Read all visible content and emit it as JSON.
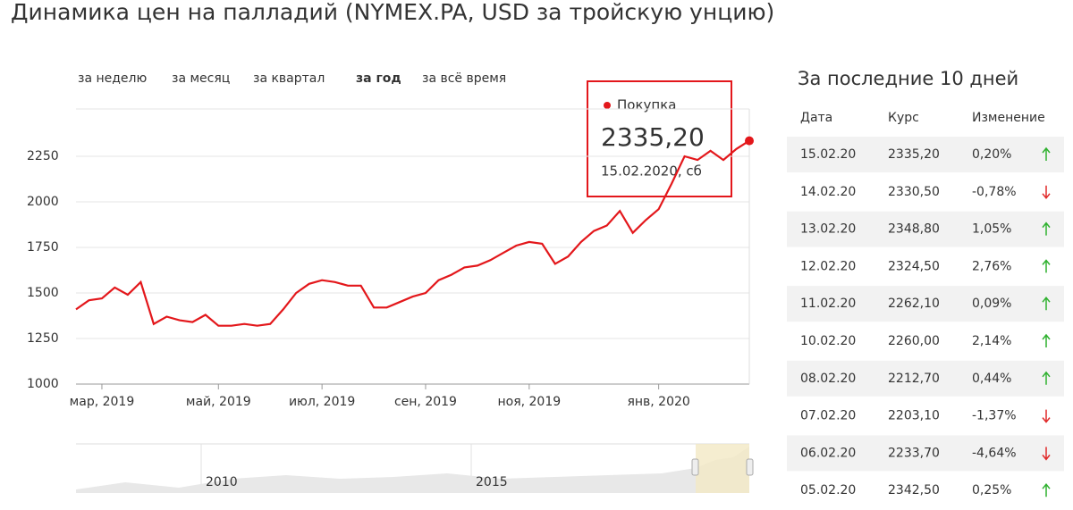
{
  "title": "Динамика цен на палладий (NYMEX.PA, USD за тройскую унцию)",
  "tabs": {
    "items": [
      "за неделю",
      "за месяц",
      "за квартал",
      "за год",
      "за всё время"
    ],
    "active": 3
  },
  "chart_data": {
    "type": "line",
    "color": "#e3171b",
    "categories": [
      null,
      null,
      "мар, 2019",
      null,
      null,
      null,
      null,
      null,
      null,
      null,
      null,
      "май, 2019",
      null,
      null,
      null,
      null,
      null,
      null,
      null,
      "июл, 2019",
      null,
      null,
      null,
      null,
      null,
      null,
      null,
      "сен, 2019",
      null,
      null,
      null,
      null,
      null,
      null,
      null,
      "ноя, 2019",
      null,
      null,
      null,
      null,
      null,
      null,
      null,
      null,
      null,
      "янв, 2020",
      null,
      null,
      null,
      null,
      null,
      null,
      null
    ],
    "values": [
      1410,
      1460,
      1470,
      1530,
      1490,
      1560,
      1330,
      1370,
      1350,
      1340,
      1380,
      1320,
      1320,
      1330,
      1320,
      1330,
      1410,
      1500,
      1550,
      1570,
      1560,
      1540,
      1540,
      1420,
      1420,
      1450,
      1480,
      1500,
      1570,
      1600,
      1640,
      1650,
      1680,
      1720,
      1760,
      1780,
      1770,
      1660,
      1700,
      1780,
      1840,
      1870,
      1950,
      1830,
      1900,
      1960,
      2100,
      2250,
      2230,
      2280,
      2230,
      2290,
      2335.2
    ],
    "ylim": [
      1000,
      2500
    ],
    "yticks": [
      1000,
      1250,
      1500,
      1750,
      2000,
      2250
    ],
    "grid": true
  },
  "tooltip": {
    "label": "Покупка",
    "value": "2335,20",
    "date": "15.02.2020, сб"
  },
  "navigator": {
    "labels": [
      "2010",
      "2015"
    ]
  },
  "table": {
    "title": "За последние 10 дней",
    "headers": [
      "Дата",
      "Курс",
      "Изменение"
    ],
    "rows": [
      [
        "15.02.20",
        "2335,20",
        "0,20%"
      ],
      [
        "14.02.20",
        "2330,50",
        "-0,78%"
      ],
      [
        "13.02.20",
        "2348,80",
        "1,05%"
      ],
      [
        "12.02.20",
        "2324,50",
        "2,76%"
      ],
      [
        "11.02.20",
        "2262,10",
        "0,09%"
      ],
      [
        "10.02.20",
        "2260,00",
        "2,14%"
      ],
      [
        "08.02.20",
        "2212,70",
        "0,44%"
      ],
      [
        "07.02.20",
        "2203,10",
        "-1,37%"
      ],
      [
        "06.02.20",
        "2233,70",
        "-4,64%"
      ],
      [
        "05.02.20",
        "2342,50",
        "0,25%"
      ]
    ]
  }
}
